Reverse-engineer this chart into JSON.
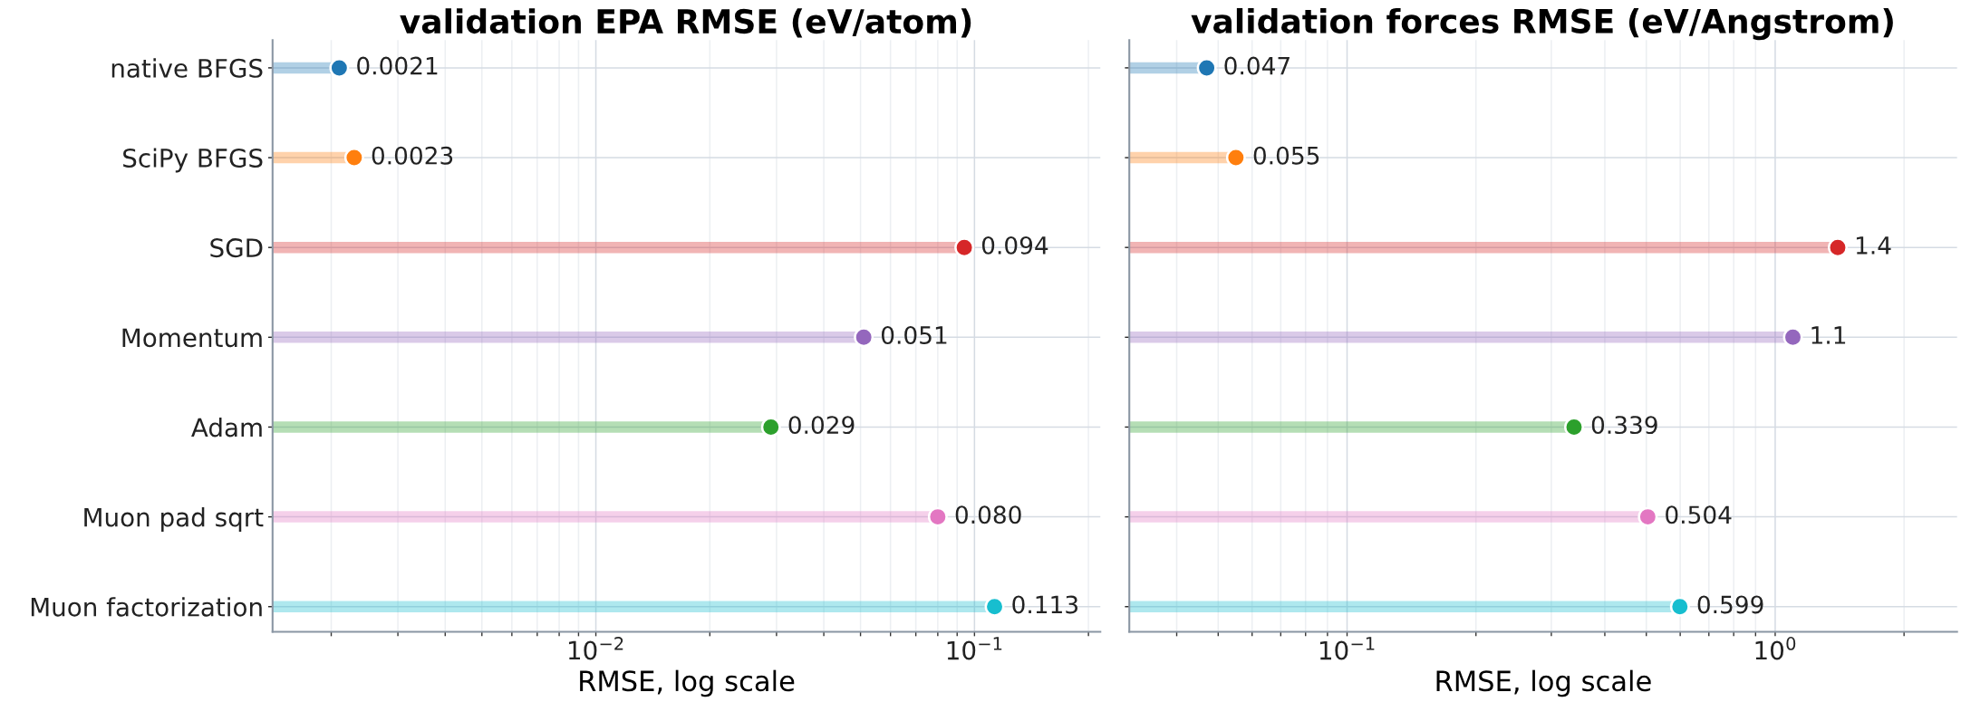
{
  "chart_data": [
    {
      "type": "lollipop",
      "orientation": "horizontal",
      "title": "validation EPA RMSE (eV/atom)",
      "xlabel": "RMSE, log scale",
      "log": "x",
      "grid": true,
      "marker": "circle",
      "categories": [
        "native BFGS",
        "SciPy BFGS",
        "SGD",
        "Momentum",
        "Adam",
        "Muon pad sqrt",
        "Muon factorization"
      ],
      "values": [
        0.0021,
        0.0023,
        0.094,
        0.051,
        0.029,
        0.08,
        0.113
      ],
      "value_labels": [
        "0.0021",
        "0.0023",
        "0.094",
        "0.051",
        "0.029",
        "0.080",
        "0.113"
      ],
      "colors": [
        "#1f77b4",
        "#ff7f0e",
        "#d62728",
        "#9467bd",
        "#2ca02c",
        "#e377c2",
        "#17becf"
      ],
      "xlim": [
        0.0014,
        0.215
      ],
      "xticks": [
        {
          "value": 0.002,
          "label": null
        },
        {
          "value": 0.003,
          "label": null
        },
        {
          "value": 0.004,
          "label": null
        },
        {
          "value": 0.005,
          "label": null
        },
        {
          "value": 0.006,
          "label": null
        },
        {
          "value": 0.007,
          "label": null
        },
        {
          "value": 0.008,
          "label": null
        },
        {
          "value": 0.009,
          "label": null
        },
        {
          "value": 0.01,
          "label": "10$^{−2}$"
        },
        {
          "value": 0.02,
          "label": null
        },
        {
          "value": 0.03,
          "label": null
        },
        {
          "value": 0.04,
          "label": null
        },
        {
          "value": 0.05,
          "label": null
        },
        {
          "value": 0.06,
          "label": null
        },
        {
          "value": 0.07,
          "label": null
        },
        {
          "value": 0.08,
          "label": null
        },
        {
          "value": 0.09,
          "label": null
        },
        {
          "value": 0.1,
          "label": "10$^{−1}$"
        },
        {
          "value": 0.2,
          "label": null
        }
      ]
    },
    {
      "type": "lollipop",
      "orientation": "horizontal",
      "title": "validation forces RMSE (eV/Angstrom)",
      "xlabel": "RMSE, log scale",
      "log": "x",
      "grid": true,
      "marker": "circle",
      "tick_labels": "x",
      "categories": [
        null,
        null,
        null,
        null,
        null,
        null,
        null
      ],
      "values": [
        0.047,
        0.055,
        1.4,
        1.1,
        0.339,
        0.504,
        0.599
      ],
      "value_labels": [
        "0.047",
        "0.055",
        "1.4",
        "1.1",
        "0.339",
        "0.504",
        "0.599"
      ],
      "colors": [
        "#1f77b4",
        "#ff7f0e",
        "#d62728",
        "#9467bd",
        "#2ca02c",
        "#e377c2",
        "#17becf"
      ],
      "xlim": [
        0.031,
        2.66
      ],
      "xticks": [
        {
          "value": 0.04,
          "label": null
        },
        {
          "value": 0.05,
          "label": null
        },
        {
          "value": 0.06,
          "label": null
        },
        {
          "value": 0.07,
          "label": null
        },
        {
          "value": 0.08,
          "label": null
        },
        {
          "value": 0.09,
          "label": null
        },
        {
          "value": 0.1,
          "label": "10$^{−1}$"
        },
        {
          "value": 0.2,
          "label": null
        },
        {
          "value": 0.3,
          "label": null
        },
        {
          "value": 0.4,
          "label": null
        },
        {
          "value": 0.5,
          "label": null
        },
        {
          "value": 0.6,
          "label": null
        },
        {
          "value": 0.7,
          "label": null
        },
        {
          "value": 0.8,
          "label": null
        },
        {
          "value": 0.9,
          "label": null
        },
        {
          "value": 1,
          "label": "10$^{0}$"
        },
        {
          "value": 2,
          "label": null
        }
      ]
    }
  ]
}
